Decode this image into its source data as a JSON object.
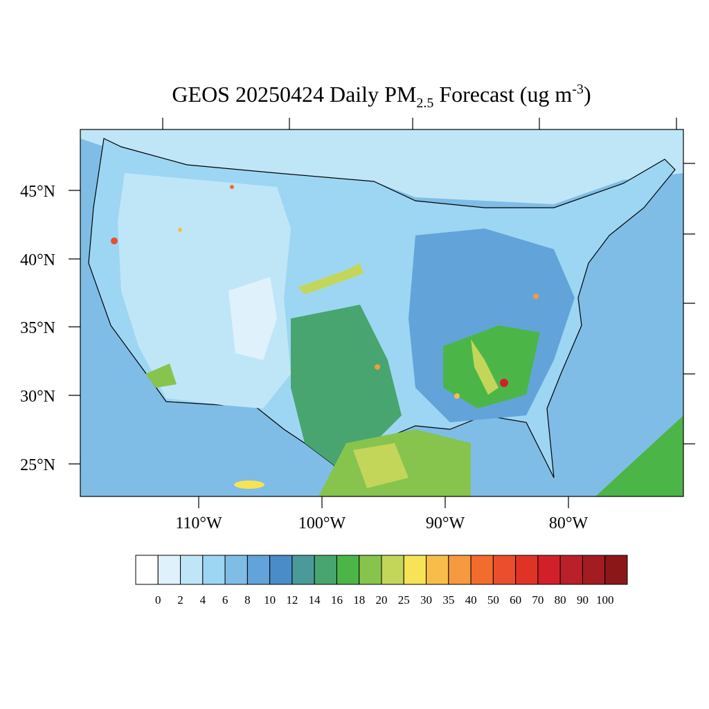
{
  "title": {
    "main": "GEOS 20250424 Daily PM",
    "subscript": "2.5",
    "middle": " Forecast (ug m",
    "superscript": "-3",
    "end": ")"
  },
  "lat_labels": [
    "45°N",
    "40°N",
    "35°N",
    "30°N",
    "25°N"
  ],
  "lon_labels": [
    "110°W",
    "100°W",
    "90°W",
    "80°W"
  ],
  "colorbar": {
    "levels": [
      0,
      2,
      4,
      6,
      8,
      10,
      12,
      14,
      16,
      18,
      20,
      25,
      30,
      35,
      40,
      50,
      60,
      70,
      80,
      90,
      100
    ],
    "colors": [
      "#ffffff",
      "#dff2fb",
      "#bfe6f7",
      "#9dd6f3",
      "#7fbde6",
      "#62a4d9",
      "#4a8cc8",
      "#4a9a9a",
      "#48a56f",
      "#4bb647",
      "#86c44d",
      "#c3d65a",
      "#f6e356",
      "#f6bd4a",
      "#f59a3e",
      "#f26c2d",
      "#e94f2d",
      "#df3425",
      "#d2202a",
      "#b8202a",
      "#a21c22",
      "#8b1719"
    ]
  }
}
